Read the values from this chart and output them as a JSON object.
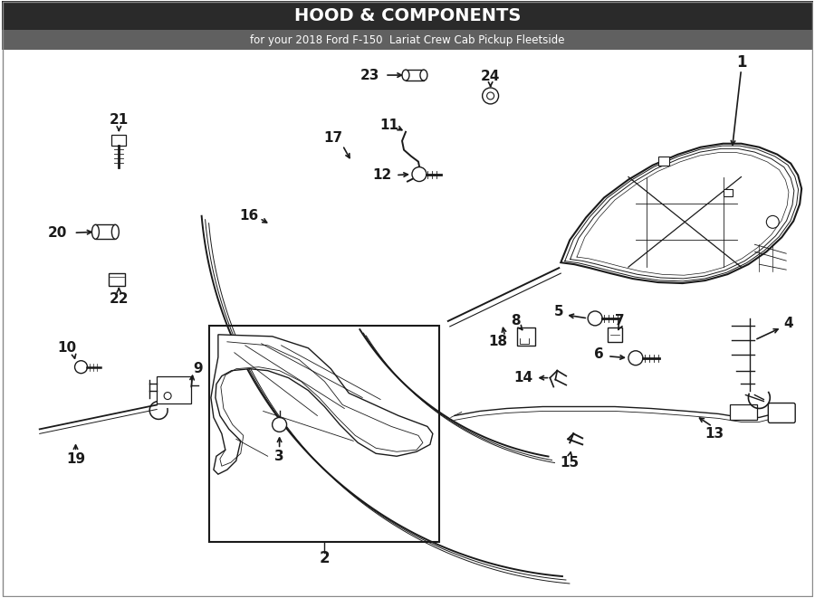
{
  "title": "HOOD & COMPONENTS",
  "subtitle": "for your 2018 Ford F-150  Lariat Crew Cab Pickup Fleetside",
  "bg_color": "#ffffff",
  "line_color": "#1a1a1a",
  "text_color": "#1a1a1a",
  "figw": 9.0,
  "figh": 6.61,
  "dpi": 100
}
